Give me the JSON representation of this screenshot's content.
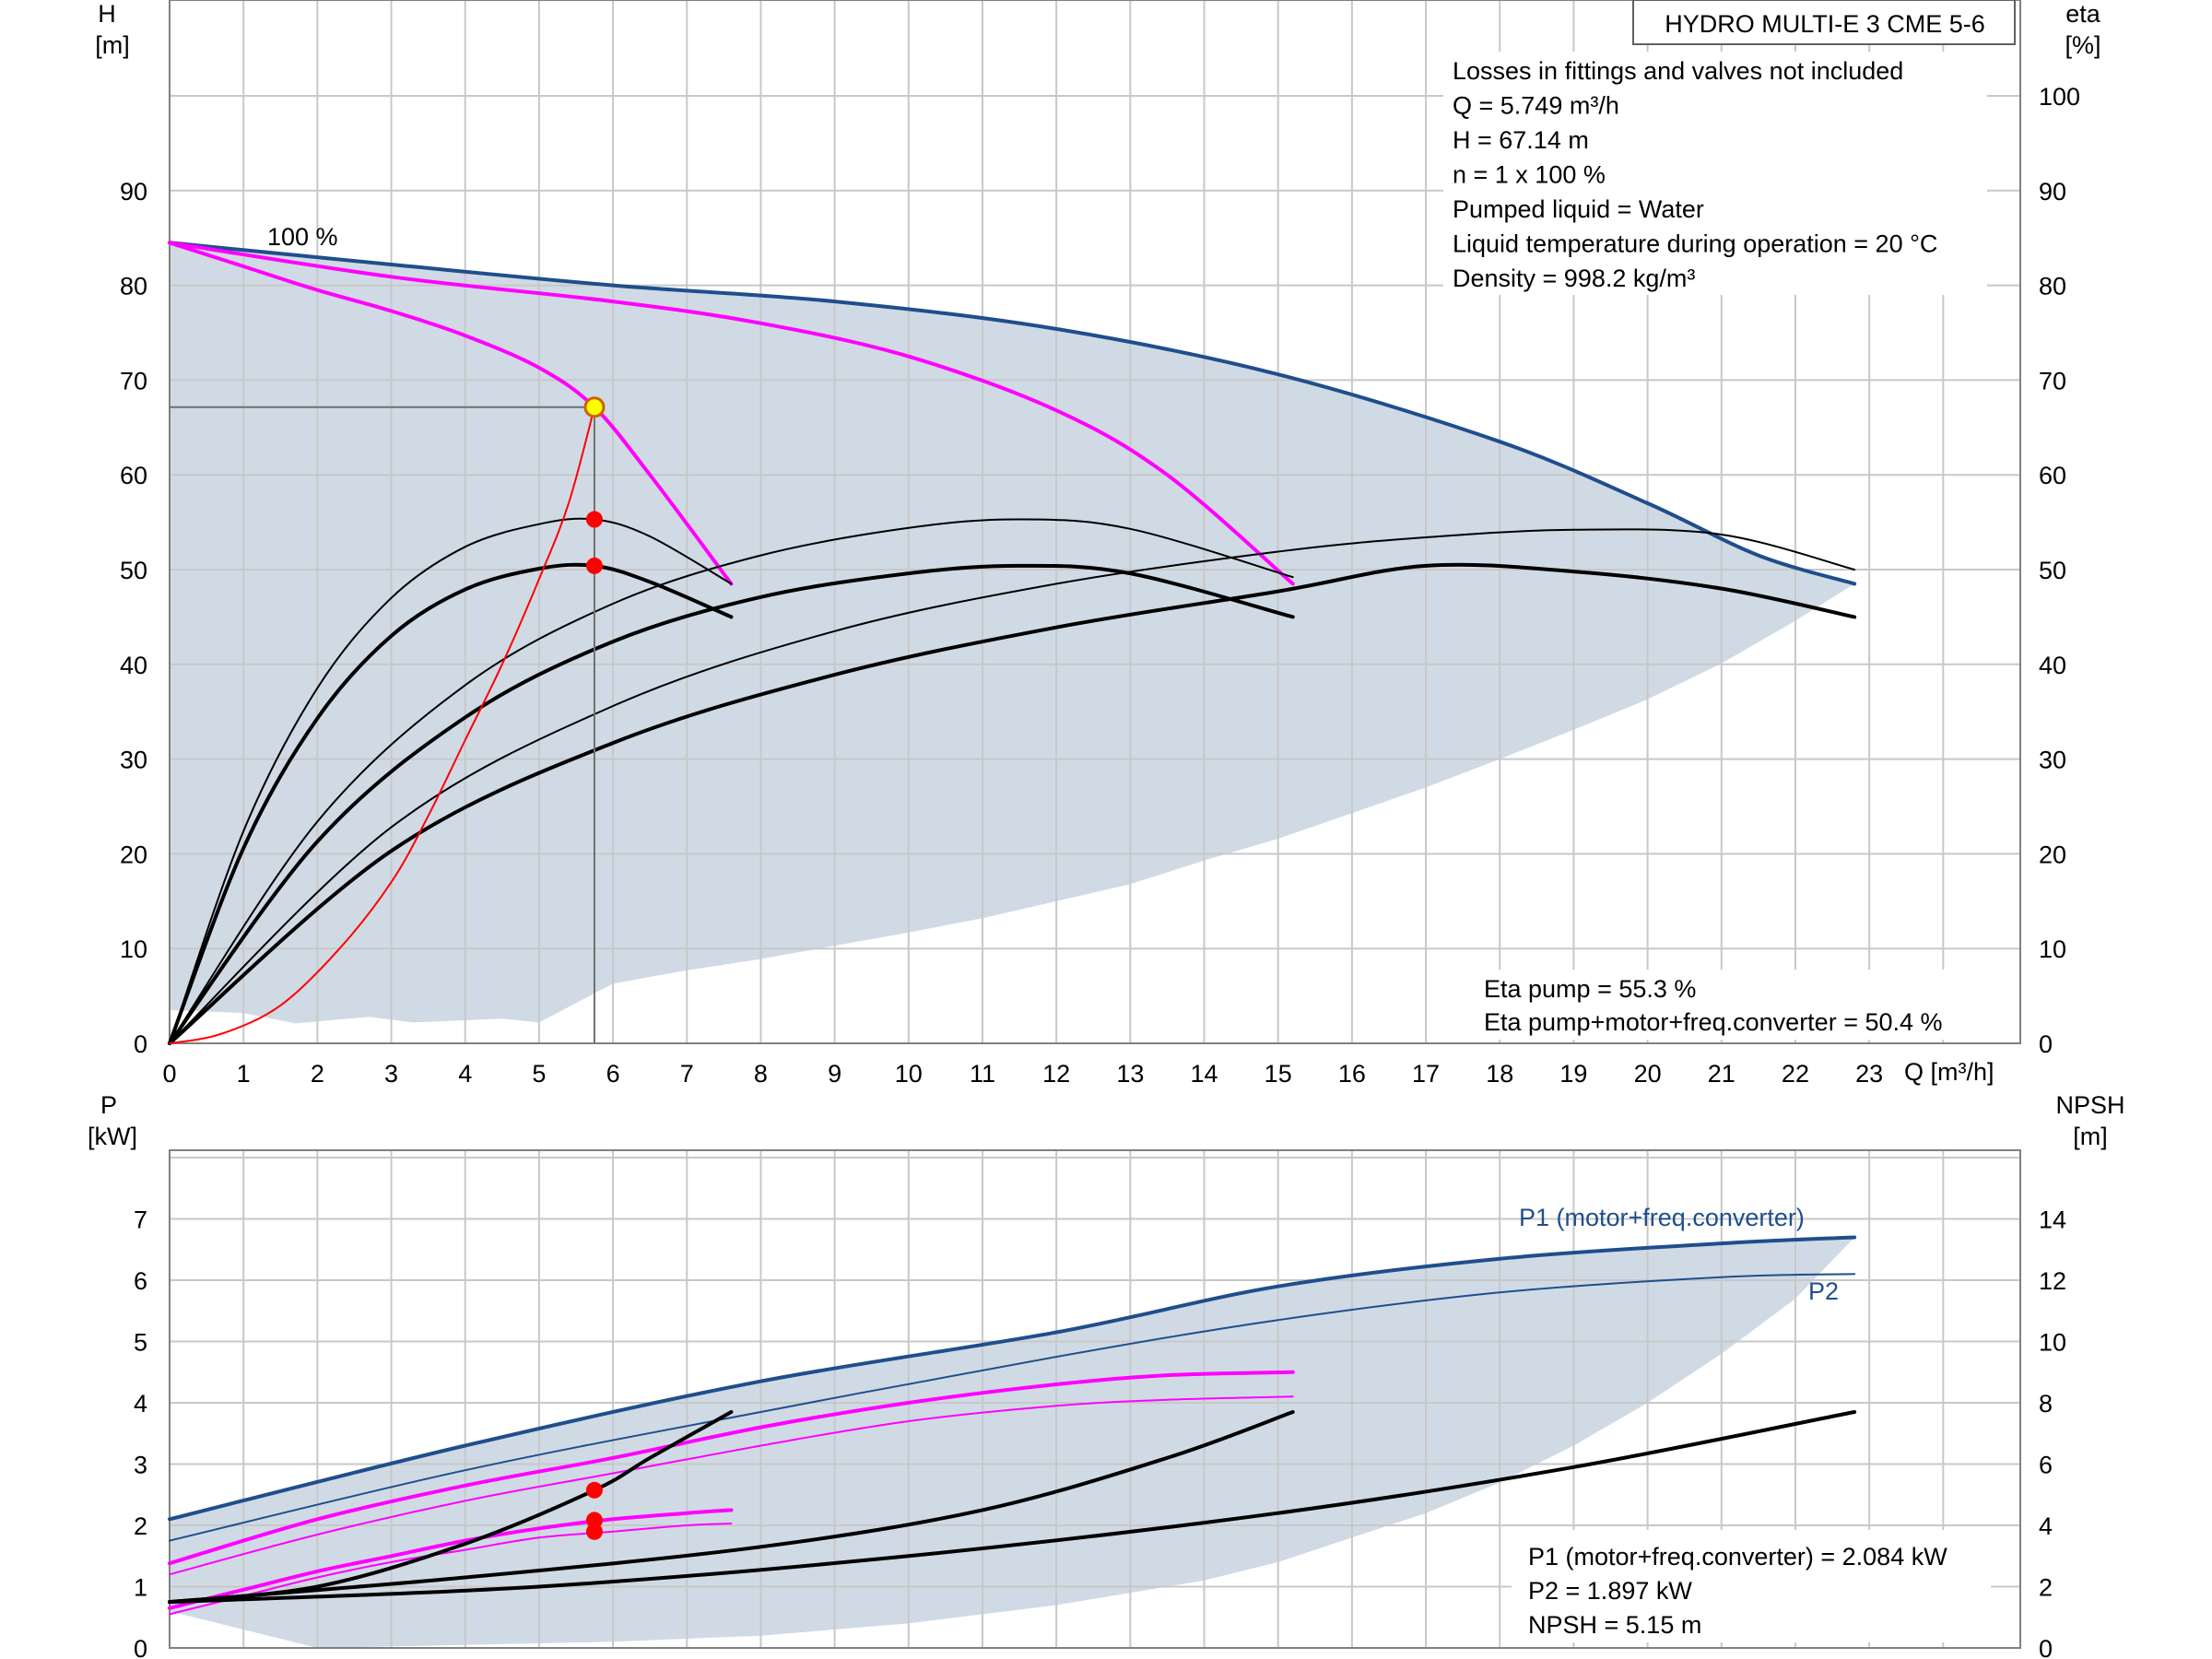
{
  "chart_data": [
    {
      "type": "line",
      "title": "HYDRO MULTI-E 3 CME 5-6",
      "xlabel": "Q [m³/h]",
      "ylabel": [
        "H",
        "[m]"
      ],
      "y2label": [
        "eta",
        "[%]"
      ],
      "xlim": [
        0,
        25
      ],
      "ylim": [
        0,
        110
      ],
      "y2lim": [
        0,
        110
      ],
      "x_ticks": [
        "0",
        "1",
        "2",
        "3",
        "4",
        "5",
        "6",
        "7",
        "8",
        "9",
        "10",
        "11",
        "12",
        "13",
        "14",
        "15",
        "16",
        "17",
        "18",
        "19",
        "20",
        "21",
        "22",
        "23"
      ],
      "y_ticks": [
        "0",
        "10",
        "20",
        "30",
        "40",
        "50",
        "60",
        "70",
        "80",
        "90"
      ],
      "y2_ticks": [
        "0",
        "10",
        "20",
        "30",
        "40",
        "50",
        "60",
        "70",
        "80",
        "90",
        "100"
      ],
      "grid": true,
      "info_lines": [
        "Losses in fittings and valves not included",
        "Q = 5.749 m³/h",
        "H = 67.14 m",
        "n = 1 x 100 %",
        "Pumped liquid = Water",
        "Liquid temperature during operation = 20 °C",
        "Density = 998.2 kg/m³"
      ],
      "result_lines": [
        "Eta pump = 55.3 %",
        "Eta pump+motor+freq.converter = 50.4 %"
      ],
      "curve_label": "100 %",
      "operating_range_upper": {
        "x": [
          0,
          3,
          6,
          9,
          12,
          15,
          18,
          20,
          21.5,
          22.8
        ],
        "y": [
          84.5,
          82.2,
          80.0,
          78.3,
          75.4,
          70.6,
          63.5,
          57.0,
          51.5,
          48.5
        ]
      },
      "operating_range_lower": {
        "x": [
          22.8,
          22,
          21,
          20,
          19,
          18,
          17,
          16,
          15,
          14,
          13,
          12,
          11,
          10,
          9,
          8,
          7,
          6,
          5,
          4.5,
          3.3,
          2.7,
          1.7,
          1,
          0
        ],
        "y": [
          48.5,
          44.6,
          40.1,
          36.3,
          33.1,
          30.0,
          27.0,
          24.3,
          21.6,
          19.3,
          16.8,
          15.0,
          13.2,
          11.7,
          10.3,
          8.9,
          7.7,
          6.3,
          2.2,
          2.6,
          2.2,
          2.8,
          2.1,
          3.2,
          3.5
        ]
      },
      "series": [
        {
          "kind": "max_head",
          "color": "#1f4e8c",
          "x": [
            0,
            3,
            6,
            9,
            12,
            15,
            18,
            20,
            21.5,
            22.8
          ],
          "y": [
            84.5,
            82.2,
            80.0,
            78.3,
            75.4,
            70.6,
            63.5,
            57.0,
            51.5,
            48.5
          ]
        },
        {
          "kind": "head_duty",
          "color": "#ff00ff",
          "x": [
            0,
            1,
            2,
            3,
            4,
            5,
            5.749,
            6.5,
            7.6
          ],
          "y": [
            84.5,
            82.0,
            79.5,
            77.3,
            74.7,
            71.3,
            67.14,
            60.0,
            48.5
          ]
        },
        {
          "kind": "head_duty",
          "color": "#ff00ff",
          "x": [
            0,
            3,
            6,
            8,
            10,
            12,
            13.5,
            15.2
          ],
          "y": [
            84.5,
            80.9,
            78.3,
            76.0,
            72.5,
            66.8,
            60.0,
            48.5
          ]
        },
        {
          "kind": "eta_pump",
          "color": "#000000",
          "x": [
            0,
            1,
            2,
            3,
            4,
            5,
            5.749,
            6.5,
            7.6
          ],
          "y": [
            0,
            22.4,
            37.5,
            47.0,
            52.4,
            54.8,
            55.3,
            53.5,
            48.5
          ]
        },
        {
          "kind": "eta_total",
          "color": "#000000",
          "x": [
            0,
            1,
            2,
            3,
            4,
            5,
            5.749,
            6.5,
            7.6
          ],
          "y": [
            0,
            20.6,
            34.3,
            43.0,
            47.9,
            50.1,
            50.4,
            48.7,
            45.0
          ]
        },
        {
          "kind": "eta_pump",
          "color": "#000000",
          "x": [
            0,
            2,
            4,
            6,
            8,
            10,
            11.5,
            13,
            15.2
          ],
          "y": [
            0,
            23.4,
            37.8,
            46.4,
            51.5,
            54.4,
            55.3,
            54.3,
            49.2
          ]
        },
        {
          "kind": "eta_total",
          "color": "#000000",
          "x": [
            0,
            2,
            4,
            6,
            8,
            10,
            11.5,
            13,
            15.2
          ],
          "y": [
            0,
            21.3,
            34.4,
            42.4,
            47.1,
            49.6,
            50.4,
            49.6,
            45.0
          ]
        },
        {
          "kind": "eta_pump",
          "color": "#000000",
          "x": [
            0,
            3,
            6,
            9,
            12,
            15,
            17,
            19,
            21,
            22.8
          ],
          "y": [
            0,
            22.8,
            35.6,
            43.5,
            48.5,
            51.9,
            53.4,
            54.2,
            53.7,
            50.0
          ]
        },
        {
          "kind": "eta_total",
          "color": "#000000",
          "x": [
            0,
            3,
            6,
            9,
            12,
            15,
            17,
            19,
            21,
            22.8
          ],
          "y": [
            0,
            20.3,
            31.7,
            38.9,
            43.9,
            47.7,
            50.4,
            49.8,
            48.0,
            45.0
          ]
        },
        {
          "kind": "system_curve",
          "color": "#ff0000",
          "x": [
            0,
            0.7,
            1.5,
            2.3,
            3.0,
            3.5,
            4.0,
            4.5,
            5.0,
            5.4,
            5.749
          ],
          "y": [
            0,
            1,
            4,
            10,
            17,
            24,
            32,
            40,
            49,
            57,
            67.14
          ]
        }
      ],
      "operating_point": {
        "q": 5.749,
        "h": 67.14
      },
      "marker_points": [
        {
          "q": 5.749,
          "eta": 55.3
        },
        {
          "q": 5.749,
          "eta": 50.4
        }
      ]
    },
    {
      "type": "line",
      "xlim": [
        0,
        25
      ],
      "ylabel": [
        "P",
        "[kW]"
      ],
      "y2label": [
        "NPSH",
        "[m]"
      ],
      "ylim": [
        0,
        8
      ],
      "y2lim": [
        0,
        16
      ],
      "y_ticks": [
        "0",
        "1",
        "2",
        "3",
        "4",
        "5",
        "6",
        "7"
      ],
      "y2_ticks": [
        "0",
        "2",
        "4",
        "6",
        "8",
        "10",
        "12",
        "14"
      ],
      "grid": true,
      "result_lines": [
        "P1 (motor+freq.converter) = 2.084 kW",
        "P2 = 1.897 kW",
        "NPSH = 5.15 m"
      ],
      "p1_label": "P1 (motor+freq.converter)",
      "p2_label": "P2",
      "operating_range_upper": {
        "x": [
          0,
          4,
          8,
          12,
          15,
          18,
          21,
          22.8
        ],
        "y": [
          2.1,
          3.3,
          4.35,
          5.15,
          5.9,
          6.35,
          6.6,
          6.7
        ]
      },
      "operating_range_lower": {
        "x": [
          22.8,
          22,
          21,
          20,
          19,
          18,
          17,
          16,
          15,
          14,
          12,
          10,
          8,
          6,
          4,
          2,
          0
        ],
        "y": [
          6.7,
          5.7,
          4.8,
          4.0,
          3.3,
          2.7,
          2.2,
          1.8,
          1.4,
          1.1,
          0.7,
          0.4,
          0.2,
          0.1,
          0.05,
          0.0,
          0.6
        ]
      },
      "series": [
        {
          "kind": "p1_max",
          "color": "#1f4e8c",
          "width": 4,
          "x": [
            0,
            4,
            8,
            12,
            15,
            18,
            21,
            22.8
          ],
          "y": [
            2.1,
            3.3,
            4.35,
            5.15,
            5.9,
            6.35,
            6.6,
            6.7
          ]
        },
        {
          "kind": "p2_max",
          "color": "#1f4e8c",
          "width": 2,
          "x": [
            0,
            4,
            8,
            12,
            15,
            18,
            21,
            22.8
          ],
          "y": [
            1.75,
            2.9,
            3.85,
            4.75,
            5.35,
            5.8,
            6.05,
            6.1
          ]
        },
        {
          "kind": "p1_duty",
          "color": "#ff00ff",
          "width": 4,
          "x": [
            0,
            2,
            4,
            6,
            8,
            10,
            12,
            13.5,
            15.2
          ],
          "y": [
            1.38,
            2.1,
            2.65,
            3.1,
            3.6,
            4.0,
            4.3,
            4.45,
            4.5
          ]
        },
        {
          "kind": "p2_duty",
          "color": "#ff00ff",
          "width": 2,
          "x": [
            0,
            2,
            4,
            6,
            8,
            10,
            12,
            13.5,
            15.2
          ],
          "y": [
            1.2,
            1.85,
            2.4,
            2.85,
            3.3,
            3.7,
            3.95,
            4.05,
            4.1
          ]
        },
        {
          "kind": "p1_duty",
          "color": "#ff00ff",
          "width": 4,
          "x": [
            0,
            1,
            2,
            3,
            4,
            5,
            6,
            7,
            7.6
          ],
          "y": [
            0.65,
            0.95,
            1.25,
            1.5,
            1.75,
            1.95,
            2.1,
            2.2,
            2.25
          ]
        },
        {
          "kind": "p2_duty",
          "color": "#ff00ff",
          "width": 2,
          "x": [
            0,
            1,
            2,
            3,
            4,
            5,
            6,
            7,
            7.6
          ],
          "y": [
            0.55,
            0.85,
            1.15,
            1.4,
            1.6,
            1.8,
            1.9,
            2.0,
            2.03
          ]
        },
        {
          "kind": "npsh",
          "color": "#000000",
          "width": 4,
          "x": [
            0,
            2,
            4,
            5.749,
            6.5,
            7.6
          ],
          "y2": [
            1.5,
            2.0,
            3.4,
            5.15,
            6.2,
            7.7
          ]
        },
        {
          "kind": "npsh",
          "color": "#000000",
          "width": 4,
          "x": [
            0,
            4,
            8,
            11,
            13.5,
            15.2
          ],
          "y2": [
            1.5,
            2.3,
            3.3,
            4.5,
            6.2,
            7.7
          ]
        },
        {
          "kind": "npsh",
          "color": "#000000",
          "width": 4,
          "x": [
            0,
            5,
            10,
            15,
            19,
            22.8
          ],
          "y2": [
            1.5,
            2.0,
            3.0,
            4.4,
            5.9,
            7.7
          ]
        }
      ],
      "marker_points": [
        {
          "q": 5.749,
          "npsh": 5.15
        },
        {
          "q": 5.749,
          "p": 2.084
        },
        {
          "q": 5.749,
          "p": 1.897
        }
      ]
    }
  ]
}
